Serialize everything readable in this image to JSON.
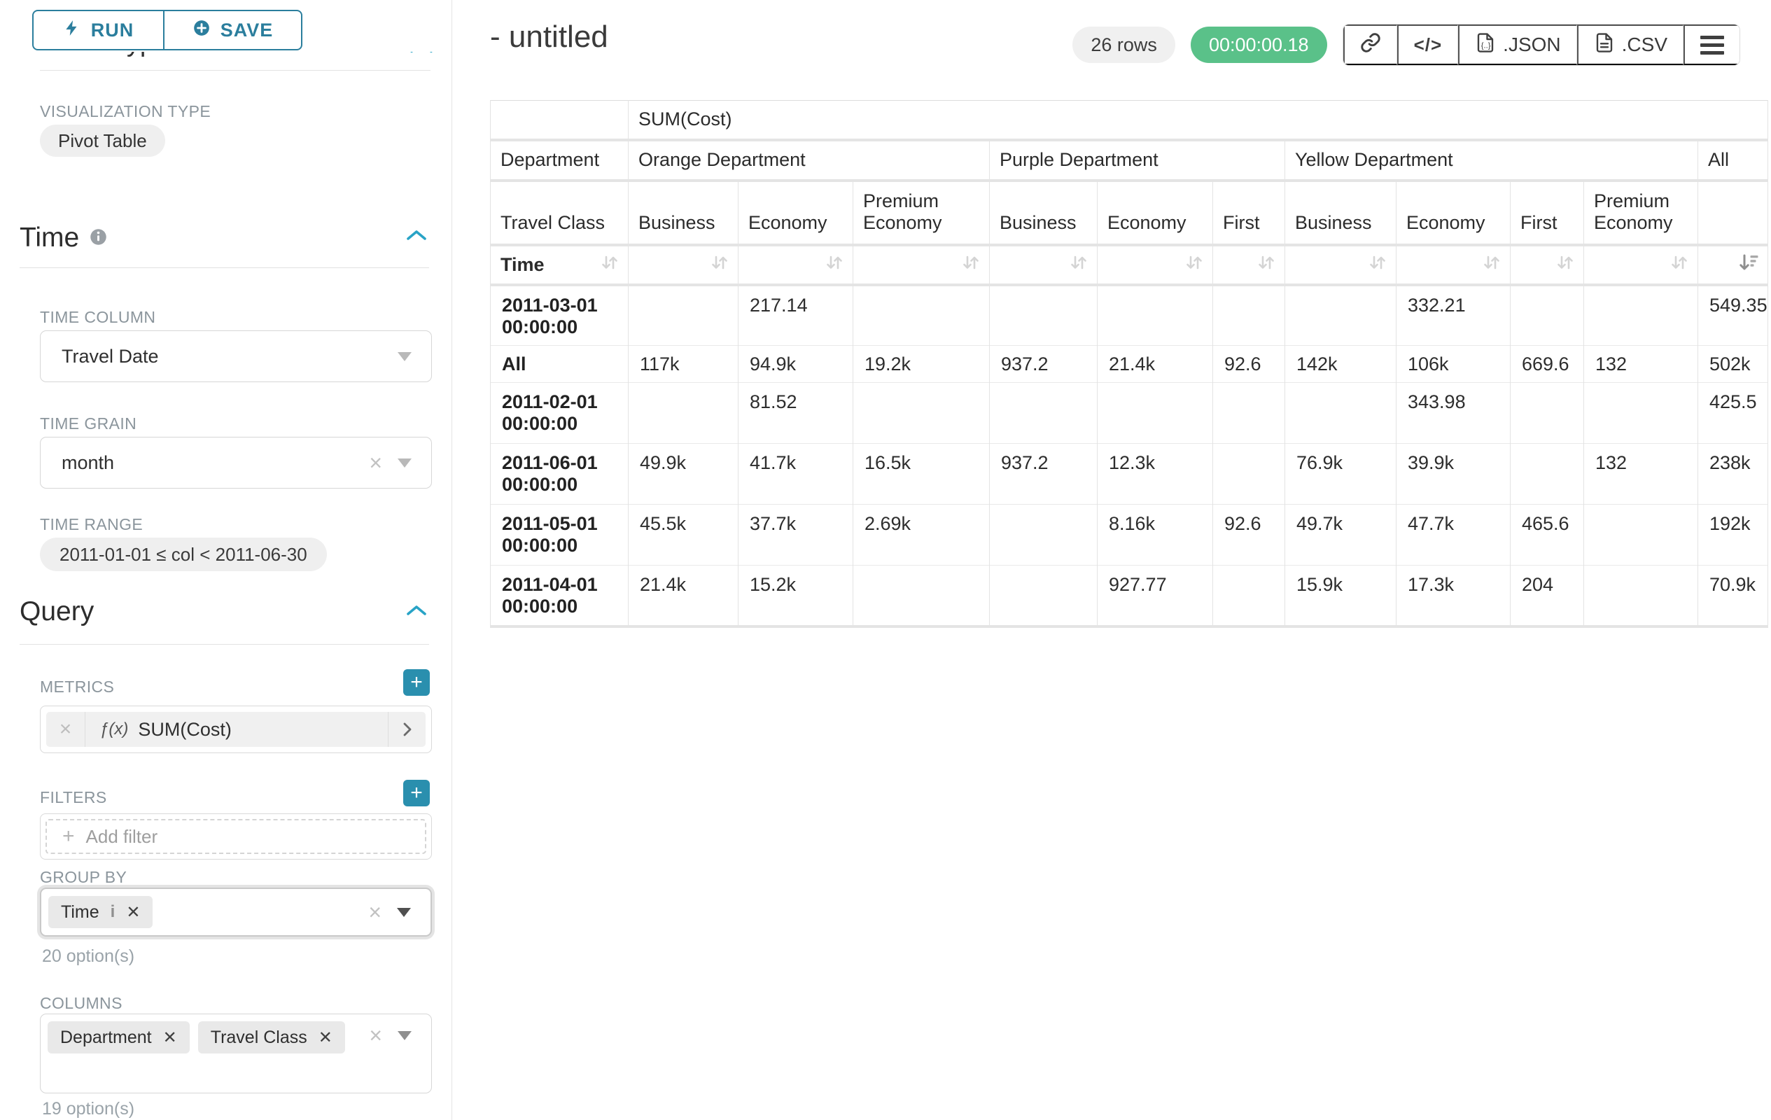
{
  "colors": {
    "accent_teal": "#2b7e9d",
    "accent_bright_blue": "#28a3c6",
    "success_green": "#5ac189",
    "plus_button_teal": "#2a8fae"
  },
  "sidebar": {
    "run_label": "RUN",
    "save_label": "SAVE",
    "chart_type_heading": "Chart Type",
    "viz": {
      "label": "VISUALIZATION TYPE",
      "value": "Pivot Table"
    },
    "time": {
      "title": "Time",
      "column_label": "TIME COLUMN",
      "column_value": "Travel Date",
      "grain_label": "TIME GRAIN",
      "grain_value": "month",
      "range_label": "TIME RANGE",
      "range_value": "2011-01-01 ≤ col < 2011-06-30"
    },
    "query": {
      "title": "Query",
      "metrics_label": "METRICS",
      "metric_fx": "ƒ(x)",
      "metric_value": "SUM(Cost)",
      "filters_label": "FILTERS",
      "add_filter": "Add filter",
      "group_by_label": "GROUP BY",
      "group_by_chips": [
        {
          "label": "Time"
        }
      ],
      "group_by_hint": "20 option(s)",
      "columns_label": "COLUMNS",
      "columns_chips": [
        {
          "label": "Department"
        },
        {
          "label": "Travel Class"
        }
      ],
      "columns_hint": "19 option(s)"
    }
  },
  "header": {
    "title": "- untitled",
    "rows_badge": "26 rows",
    "timer": "00:00:00.18",
    "export_json": ".JSON",
    "export_csv": ".CSV"
  },
  "icons": {
    "run": "lightning-bolt-icon",
    "save": "plus-circle-icon",
    "section_info": "info-icon",
    "section_collapse": "chevron-up-icon",
    "add": "plus-icon",
    "share": "link-icon",
    "embed": "code-icon",
    "json_file": "file-braces-icon",
    "csv_file": "file-lines-icon",
    "more": "hamburger-menu-icon",
    "sort": "sort-arrows-icon",
    "sort_active": "sort-desc-icon"
  },
  "chart_data": {
    "type": "table",
    "subtype": "pivot",
    "metric": "SUM(Cost)",
    "dimensions": {
      "columns": [
        "Department",
        "Travel Class"
      ],
      "rows": [
        "Time"
      ]
    },
    "column_groups": [
      {
        "label": "Orange Department",
        "children": [
          "Business",
          "Economy",
          "Premium Economy"
        ]
      },
      {
        "label": "Purple Department",
        "children": [
          "Business",
          "Economy",
          "First"
        ]
      },
      {
        "label": "Yellow Department",
        "children": [
          "Business",
          "Economy",
          "First",
          "Premium Economy"
        ]
      },
      {
        "label": "All",
        "children": [
          ""
        ]
      }
    ],
    "sorted_by": "All",
    "sort_direction": "desc",
    "rows": [
      {
        "label": "2011-03-01 00:00:00",
        "values": [
          "",
          "217.14",
          "",
          "",
          "",
          "",
          "",
          "332.21",
          "",
          "",
          "549.35"
        ]
      },
      {
        "label": "All",
        "values": [
          "117k",
          "94.9k",
          "19.2k",
          "937.2",
          "21.4k",
          "92.6",
          "142k",
          "106k",
          "669.6",
          "132",
          "502k"
        ]
      },
      {
        "label": "2011-02-01 00:00:00",
        "values": [
          "",
          "81.52",
          "",
          "",
          "",
          "",
          "",
          "343.98",
          "",
          "",
          "425.5"
        ]
      },
      {
        "label": "2011-06-01 00:00:00",
        "values": [
          "49.9k",
          "41.7k",
          "16.5k",
          "937.2",
          "12.3k",
          "",
          "76.9k",
          "39.9k",
          "",
          "132",
          "238k"
        ]
      },
      {
        "label": "2011-05-01 00:00:00",
        "values": [
          "45.5k",
          "37.7k",
          "2.69k",
          "",
          "8.16k",
          "92.6",
          "49.7k",
          "47.7k",
          "465.6",
          "",
          "192k"
        ]
      },
      {
        "label": "2011-04-01 00:00:00",
        "values": [
          "21.4k",
          "15.2k",
          "",
          "",
          "927.77",
          "",
          "15.9k",
          "17.3k",
          "204",
          "",
          "70.9k"
        ]
      }
    ]
  }
}
